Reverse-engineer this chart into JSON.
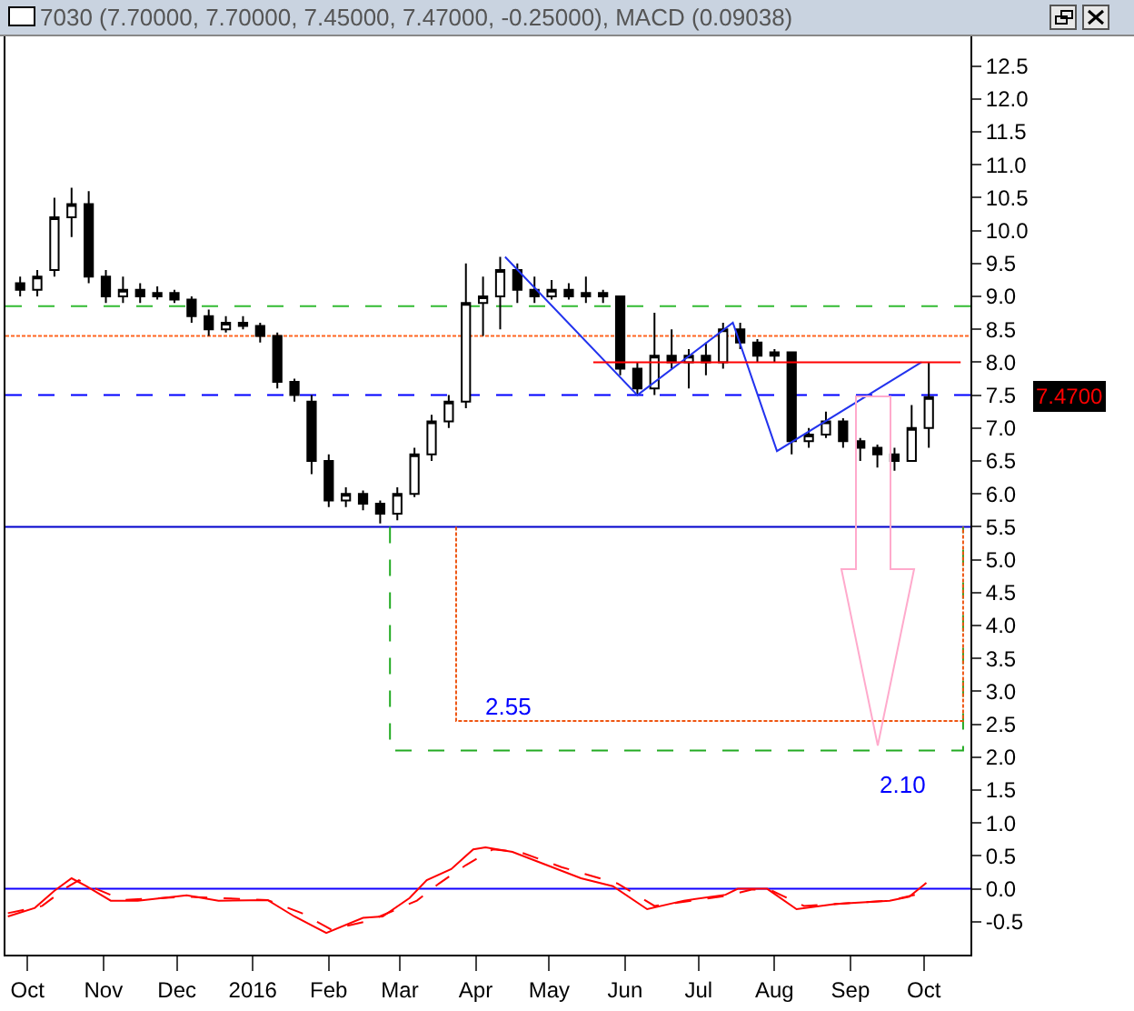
{
  "chart_data": {
    "type": "candlestick",
    "title": "7030 (7.70000, 7.70000, 7.45000, 7.47000, -0.25000), MACD (0.09038)",
    "color": "#000000",
    "x": [
      "2015-09-28",
      "2015-10-05",
      "2015-10-12",
      "2015-10-19",
      "2015-10-26",
      "2015-11-02",
      "2015-11-09",
      "2015-11-16",
      "2015-11-23",
      "2015-11-30",
      "2015-12-07",
      "2015-12-14",
      "2015-12-21",
      "2015-12-28",
      "2016-01-04",
      "2016-01-11",
      "2016-01-18",
      "2016-01-25",
      "2016-02-01",
      "2016-02-08",
      "2016-02-15",
      "2016-02-22",
      "2016-02-29",
      "2016-03-07",
      "2016-03-14",
      "2016-03-21",
      "2016-03-28",
      "2016-04-04",
      "2016-04-11",
      "2016-04-18",
      "2016-04-25",
      "2016-05-02",
      "2016-05-09",
      "2016-05-16",
      "2016-05-23",
      "2016-05-30",
      "2016-06-06",
      "2016-06-13",
      "2016-06-20",
      "2016-06-27",
      "2016-07-04",
      "2016-07-11",
      "2016-07-18",
      "2016-07-25",
      "2016-08-01",
      "2016-08-08",
      "2016-08-15",
      "2016-08-22",
      "2016-08-29",
      "2016-09-05",
      "2016-09-12",
      "2016-09-19",
      "2016-09-26",
      "2016-10-03"
    ],
    "ohlc": [
      [
        9.2,
        9.3,
        9.0,
        9.1
      ],
      [
        9.1,
        9.4,
        9.0,
        9.3
      ],
      [
        9.4,
        10.5,
        9.3,
        10.2
      ],
      [
        10.2,
        10.65,
        9.9,
        10.4
      ],
      [
        10.4,
        10.6,
        9.2,
        9.3
      ],
      [
        9.3,
        9.4,
        8.9,
        9.0
      ],
      [
        9.0,
        9.3,
        8.9,
        9.1
      ],
      [
        9.1,
        9.2,
        8.9,
        9.0
      ],
      [
        9.0,
        9.15,
        8.95,
        9.05
      ],
      [
        9.05,
        9.1,
        8.9,
        8.95
      ],
      [
        8.95,
        9.0,
        8.6,
        8.7
      ],
      [
        8.7,
        8.8,
        8.4,
        8.5
      ],
      [
        8.5,
        8.7,
        8.45,
        8.6
      ],
      [
        8.6,
        8.7,
        8.5,
        8.55
      ],
      [
        8.55,
        8.6,
        8.3,
        8.4
      ],
      [
        8.4,
        8.45,
        7.6,
        7.7
      ],
      [
        7.7,
        7.75,
        7.4,
        7.5
      ],
      [
        7.4,
        7.5,
        6.3,
        6.5
      ],
      [
        6.5,
        6.6,
        5.8,
        5.9
      ],
      [
        5.9,
        6.1,
        5.8,
        6.0
      ],
      [
        6.0,
        6.05,
        5.75,
        5.85
      ],
      [
        5.85,
        5.9,
        5.55,
        5.7
      ],
      [
        5.7,
        6.1,
        5.6,
        6.0
      ],
      [
        6.0,
        6.7,
        5.95,
        6.6
      ],
      [
        6.6,
        7.2,
        6.5,
        7.1
      ],
      [
        7.1,
        7.5,
        7.0,
        7.4
      ],
      [
        7.4,
        9.5,
        7.3,
        8.9
      ],
      [
        8.9,
        9.3,
        8.4,
        9.0
      ],
      [
        9.0,
        9.6,
        8.5,
        9.4
      ],
      [
        9.4,
        9.5,
        8.9,
        9.1
      ],
      [
        9.1,
        9.3,
        8.9,
        9.0
      ],
      [
        9.0,
        9.25,
        8.95,
        9.1
      ],
      [
        9.1,
        9.2,
        8.95,
        9.0
      ],
      [
        9.0,
        9.3,
        8.9,
        9.05
      ],
      [
        9.05,
        9.1,
        8.9,
        9.0
      ],
      [
        9.0,
        9.0,
        7.8,
        7.9
      ],
      [
        7.9,
        8.0,
        7.5,
        7.6
      ],
      [
        7.6,
        8.75,
        7.5,
        8.1
      ],
      [
        8.1,
        8.5,
        7.9,
        8.0
      ],
      [
        8.0,
        8.2,
        7.6,
        8.1
      ],
      [
        8.1,
        8.3,
        7.8,
        8.0
      ],
      [
        8.0,
        8.6,
        7.9,
        8.5
      ],
      [
        8.5,
        8.6,
        8.2,
        8.3
      ],
      [
        8.3,
        8.35,
        8.0,
        8.1
      ],
      [
        8.1,
        8.2,
        8.0,
        8.15
      ],
      [
        8.15,
        8.15,
        6.6,
        6.8
      ],
      [
        6.8,
        7.0,
        6.7,
        6.9
      ],
      [
        6.9,
        7.25,
        6.85,
        7.1
      ],
      [
        7.1,
        7.15,
        6.7,
        6.8
      ],
      [
        6.8,
        6.85,
        6.5,
        6.7
      ],
      [
        6.7,
        6.75,
        6.4,
        6.6
      ],
      [
        6.6,
        6.7,
        6.35,
        6.5
      ],
      [
        6.5,
        7.35,
        6.5,
        7.0
      ],
      [
        7.0,
        8.0,
        6.7,
        7.47
      ]
    ],
    "series": [
      {
        "type": "line",
        "color": "#ff0000",
        "line_style": "solid",
        "x": [
          "2015-09-23",
          "2015-10-04",
          "2015-10-12",
          "2015-10-19",
          "2015-10-25",
          "2015-11-04",
          "2015-11-15",
          "2015-12-05",
          "2015-12-18",
          "2016-01-07",
          "2016-01-18",
          "2016-01-31",
          "2016-02-15",
          "2016-02-23",
          "2016-03-05",
          "2016-03-12",
          "2016-03-22",
          "2016-03-31",
          "2016-04-05",
          "2016-04-16",
          "2016-04-30",
          "2016-05-14",
          "2016-05-27",
          "2016-06-10",
          "2016-06-25",
          "2016-07-12",
          "2016-07-17",
          "2016-07-29",
          "2016-08-10",
          "2016-08-26",
          "2016-09-17",
          "2016-09-25",
          "2016-10-02"
        ],
        "values": [
          -0.42,
          -0.29,
          -0.03,
          0.16,
          0.04,
          -0.18,
          -0.18,
          -0.1,
          -0.18,
          -0.17,
          -0.42,
          -0.67,
          -0.44,
          -0.42,
          -0.14,
          0.13,
          0.3,
          0.6,
          0.63,
          0.56,
          0.36,
          0.16,
          0.04,
          -0.31,
          -0.18,
          -0.09,
          0,
          0,
          -0.31,
          -0.23,
          -0.18,
          -0.12,
          0.09
        ]
      },
      {
        "type": "line",
        "color": "#ff0000",
        "line_style": "dashed",
        "x": [
          "2015-09-23",
          "2015-10-07",
          "2015-10-17",
          "2015-10-22",
          "2015-10-29",
          "2015-11-09",
          "2015-12-05",
          "2016-01-07",
          "2016-01-21",
          "2016-02-02",
          "2016-02-18",
          "2016-03-08",
          "2016-03-17",
          "2016-03-28",
          "2016-04-08",
          "2016-04-19",
          "2016-05-06",
          "2016-05-29",
          "2016-06-13",
          "2016-07-12",
          "2016-07-23",
          "2016-07-31",
          "2016-08-13",
          "2016-09-17",
          "2016-09-30",
          "2016-10-02"
        ],
        "values": [
          -0.37,
          -0.26,
          0.02,
          0.13,
          0.0,
          -0.17,
          -0.12,
          -0.17,
          -0.37,
          -0.62,
          -0.48,
          -0.18,
          0.08,
          0.36,
          0.6,
          0.56,
          0.33,
          0.08,
          -0.26,
          -0.11,
          -0.01,
          -0.03,
          -0.26,
          -0.18,
          -0.07,
          0.02
        ]
      },
      {
        "type": "line",
        "color": "#2233ee",
        "line_style": "solid",
        "x": [
          "2016-04-13",
          "2016-06-06",
          "2016-07-15",
          "2016-08-02",
          "2016-09-30"
        ],
        "values": [
          9.6,
          7.5,
          8.6,
          6.65,
          8.0
        ]
      },
      {
        "type": "line",
        "color": "#ff0000",
        "line_style": "solid",
        "x": [
          "2016-05-19",
          "2016-10-16"
        ],
        "values": [
          8.0,
          8.0
        ]
      },
      {
        "type": "line",
        "color": "#22aa22",
        "line_style": "dashed",
        "x": [
          "2016-02-26",
          "2016-02-26",
          "2016-10-17",
          "2016-10-17"
        ],
        "values": [
          5.5,
          2.1,
          2.1,
          5.5
        ]
      },
      {
        "type": "line",
        "color": "#ee5511",
        "line_style": "dotted",
        "x": [
          "2016-03-24",
          "2016-03-24",
          "2016-10-17",
          "2016-10-17"
        ],
        "values": [
          5.5,
          2.55,
          2.55,
          5.5
        ]
      }
    ],
    "ref_lines": [
      {
        "axis": "y",
        "value": 8.85,
        "color": "#33bb33",
        "line_style": "dashed"
      },
      {
        "axis": "y",
        "value": 8.4,
        "color": "#ff6622",
        "line_style": "dotted"
      },
      {
        "axis": "y",
        "value": 7.5,
        "color": "#0000ff",
        "line_style": "dashed"
      },
      {
        "axis": "y",
        "value": 5.5,
        "color": "#0000cc",
        "line_style": "solid"
      },
      {
        "axis": "y",
        "value": 0,
        "color": "#1100ff",
        "line_style": "solid"
      }
    ],
    "annotations": [
      "2.55",
      "2.10",
      "7.4700"
    ],
    "xlim": [
      "2015-09-22",
      "2016-10-20"
    ],
    "xticks": [
      {
        "value": "2015-10-01",
        "label": "Oct"
      },
      {
        "value": "2015-11-01",
        "label": "Nov"
      },
      {
        "value": "2015-12-01",
        "label": "Dec"
      },
      {
        "value": "2016-01-01",
        "label": "2016"
      },
      {
        "value": "2016-02-01",
        "label": "Feb"
      },
      {
        "value": "2016-03-01",
        "label": "Mar"
      },
      {
        "value": "2016-04-01",
        "label": "Apr"
      },
      {
        "value": "2016-05-01",
        "label": "May"
      },
      {
        "value": "2016-06-01",
        "label": "Jun"
      },
      {
        "value": "2016-07-01",
        "label": "Jul"
      },
      {
        "value": "2016-08-01",
        "label": "Aug"
      },
      {
        "value": "2016-09-01",
        "label": "Sep"
      },
      {
        "value": "2016-10-01",
        "label": "Oct"
      }
    ],
    "ylim": [
      -1,
      12.95
    ],
    "yticks": [
      -0.5,
      {
        "value": 0,
        "label": "0.0"
      },
      0.5,
      {
        "value": 1,
        "label": "1.0"
      },
      1.5,
      {
        "value": 2,
        "label": "2.0"
      },
      2.5,
      {
        "value": 3,
        "label": "3.0"
      },
      3.5,
      {
        "value": 4,
        "label": "4.0"
      },
      4.5,
      {
        "value": 5,
        "label": "5.0"
      },
      5.5,
      {
        "value": 6,
        "label": "6.0"
      },
      6.5,
      {
        "value": 7,
        "label": "7.0"
      },
      7.5,
      {
        "value": 8,
        "label": "8.0"
      },
      8.5,
      {
        "value": 9,
        "label": "9.0"
      },
      9.5,
      {
        "value": 10,
        "label": "10.0"
      },
      10.5,
      {
        "value": 11,
        "label": "11.0"
      },
      11.5,
      {
        "value": 12,
        "label": "12.0"
      },
      12.5
    ]
  }
}
